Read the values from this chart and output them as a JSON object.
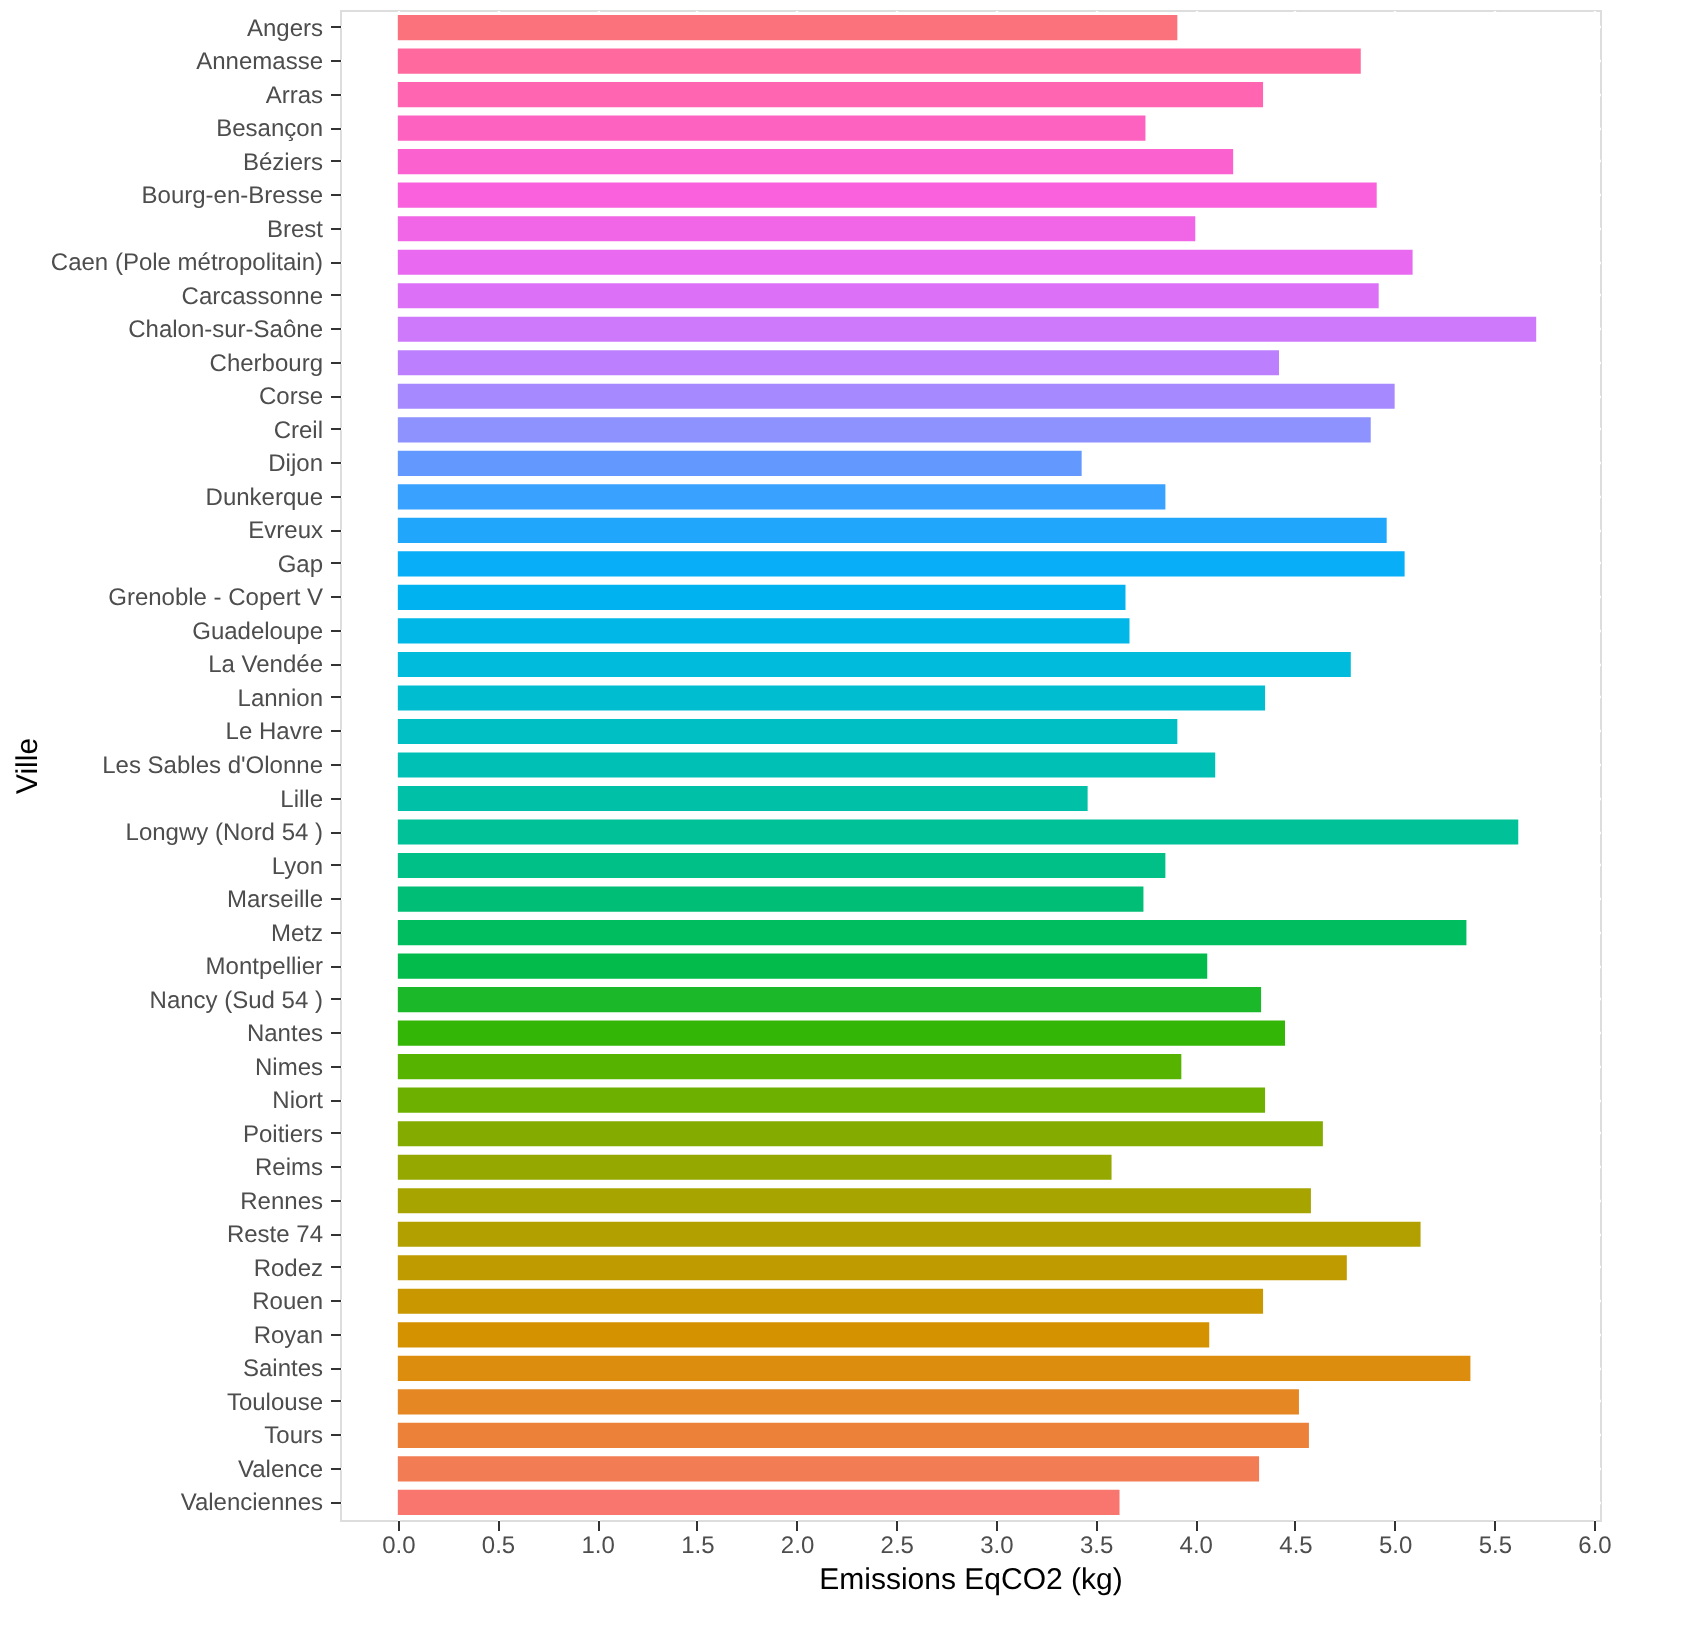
{
  "chart_data": {
    "type": "bar",
    "orientation": "horizontal",
    "xlabel": "Emissions EqCO2 (kg)",
    "ylabel": "Ville",
    "categories": [
      "Angers",
      "Annemasse",
      "Arras",
      "Besançon",
      "Béziers",
      "Bourg-en-Bresse",
      "Brest",
      "Caen (Pole métropolitain)",
      "Carcassonne",
      "Chalon-sur-Saône",
      "Cherbourg",
      "Corse",
      "Creil",
      "Dijon",
      "Dunkerque",
      "Evreux",
      "Gap",
      "Grenoble - Copert V",
      "Guadeloupe",
      "La Vendée",
      "Lannion",
      "Le Havre",
      "Les Sables d'Olonne",
      "Lille",
      "Longwy (Nord 54 )",
      "Lyon",
      "Marseille",
      "Metz",
      "Montpellier",
      "Nancy (Sud 54 )",
      "Nantes",
      "Nimes",
      "Niort",
      "Poitiers",
      "Reims",
      "Rennes",
      "Reste 74",
      "Rodez",
      "Rouen",
      "Royan",
      "Saintes",
      "Toulouse",
      "Tours",
      "Valence",
      "Valenciennes"
    ],
    "values": [
      3.91,
      4.83,
      4.34,
      3.75,
      4.19,
      4.91,
      4.0,
      5.09,
      4.92,
      5.71,
      4.42,
      5.0,
      4.88,
      3.43,
      3.85,
      4.96,
      5.05,
      3.65,
      3.67,
      4.78,
      4.35,
      3.91,
      4.1,
      3.46,
      5.62,
      3.85,
      3.74,
      5.36,
      4.06,
      4.33,
      4.45,
      3.93,
      4.35,
      4.64,
      3.58,
      4.58,
      5.13,
      4.76,
      4.34,
      4.07,
      5.38,
      4.52,
      4.57,
      4.32,
      3.62
    ],
    "colors": [
      "#fb727d",
      "#ff699e",
      "#ff65b1",
      "#fe62c1",
      "#fc62cf",
      "#f962dc",
      "#f166e6",
      "#e96af1",
      "#dc71f7",
      "#ce78fc",
      "#bc80ff",
      "#a689ff",
      "#8d92ff",
      "#6399ff",
      "#39a1ff",
      "#20a7fb",
      "#09aef8",
      "#00b3f0",
      "#00b7e7",
      "#00bbdc",
      "#00bdd0",
      "#00bfc4",
      "#00c0b6",
      "#00c1a7",
      "#00c197",
      "#00c087",
      "#00be75",
      "#00bd60",
      "#02bb4b",
      "#1bb929",
      "#34b607",
      "#56b300",
      "#6db000",
      "#84ac00",
      "#95a800",
      "#a7a400",
      "#b2a000",
      "#bf9b00",
      "#c99700",
      "#d49200",
      "#dd8d0d",
      "#e58722",
      "#ec8139",
      "#f27c53",
      "#f8766d"
    ],
    "xlim": [
      -0.29,
      6.03
    ],
    "xticks": [
      {
        "value": 0,
        "label": "0.0"
      },
      {
        "value": 0.5,
        "label": "0.5"
      },
      {
        "value": 1,
        "label": "1.0"
      },
      {
        "value": 1.5,
        "label": "1.5"
      },
      {
        "value": 2,
        "label": "2.0"
      },
      {
        "value": 2.5,
        "label": "2.5"
      },
      {
        "value": 3,
        "label": "3.0"
      },
      {
        "value": 3.5,
        "label": "3.5"
      },
      {
        "value": 4,
        "label": "4.0"
      },
      {
        "value": 4.5,
        "label": "4.5"
      },
      {
        "value": 5,
        "label": "5.0"
      },
      {
        "value": 5.5,
        "label": "5.5"
      },
      {
        "value": 6,
        "label": "6.0"
      }
    ],
    "grid": true,
    "legend": false
  }
}
